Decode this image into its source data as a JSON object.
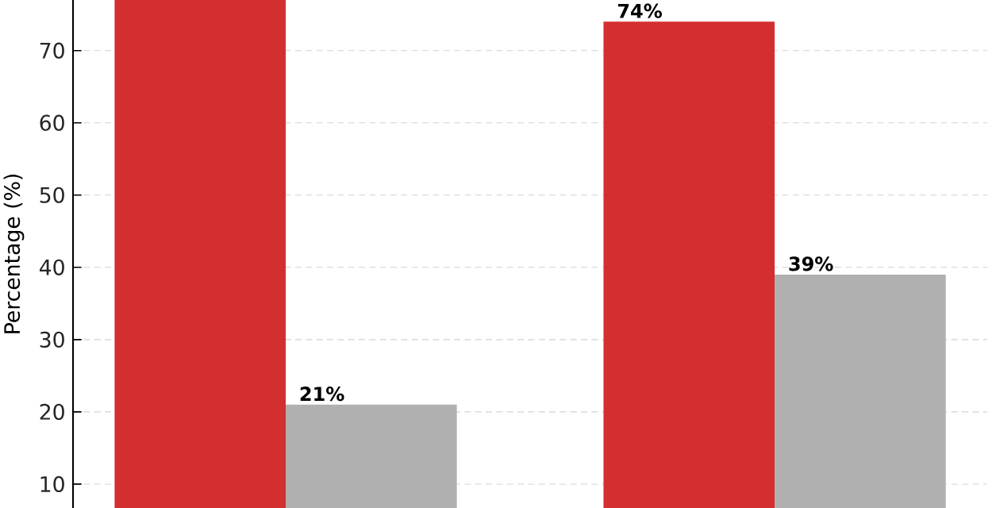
{
  "chart_data": {
    "type": "bar",
    "ylabel": "Percentage (%)",
    "categories": [
      null,
      null
    ],
    "series": [
      {
        "color": "#d32f2f",
        "values": [
          77,
          74
        ],
        "value_labels": [
          null,
          "74%"
        ]
      },
      {
        "color": "#b0b0b0",
        "values": [
          21,
          39
        ],
        "value_labels": [
          "21%",
          "39%"
        ]
      }
    ],
    "ylim": [
      6.7,
      77
    ],
    "yticks": [
      10,
      20,
      30,
      40,
      50,
      60,
      70
    ],
    "grid": true
  }
}
